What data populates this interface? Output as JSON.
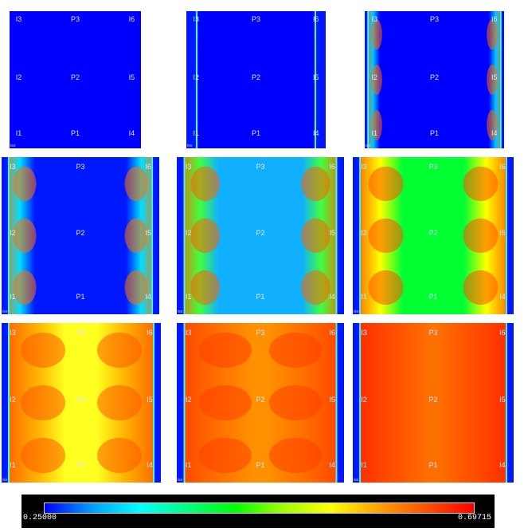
{
  "panels": [
    {
      "id": "t1",
      "stage": 0
    },
    {
      "id": "t2",
      "stage": 1
    },
    {
      "id": "t3",
      "stage": 2
    },
    {
      "id": "t4",
      "stage": 3
    },
    {
      "id": "t5",
      "stage": 4
    },
    {
      "id": "t6",
      "stage": 5
    },
    {
      "id": "t7",
      "stage": 6
    },
    {
      "id": "t8",
      "stage": 7
    },
    {
      "id": "t9",
      "stage": 8
    }
  ],
  "well_labels": {
    "left": [
      "I3",
      "I2",
      "I1"
    ],
    "center": [
      "P3",
      "P2",
      "P1"
    ],
    "right": [
      "I6",
      "I5",
      "I4"
    ]
  },
  "corner_label": "iso",
  "colorbar": {
    "min_label": "0.25000",
    "max_label": "0.69715",
    "colors": [
      "#0000ff",
      "#00a0ff",
      "#00ffff",
      "#00ff80",
      "#00ff00",
      "#a0ff00",
      "#ffff00",
      "#ffa000",
      "#ff5000",
      "#ff0000"
    ]
  },
  "colors": {
    "background_low": "#0000ff",
    "legend_background": "#000000"
  }
}
